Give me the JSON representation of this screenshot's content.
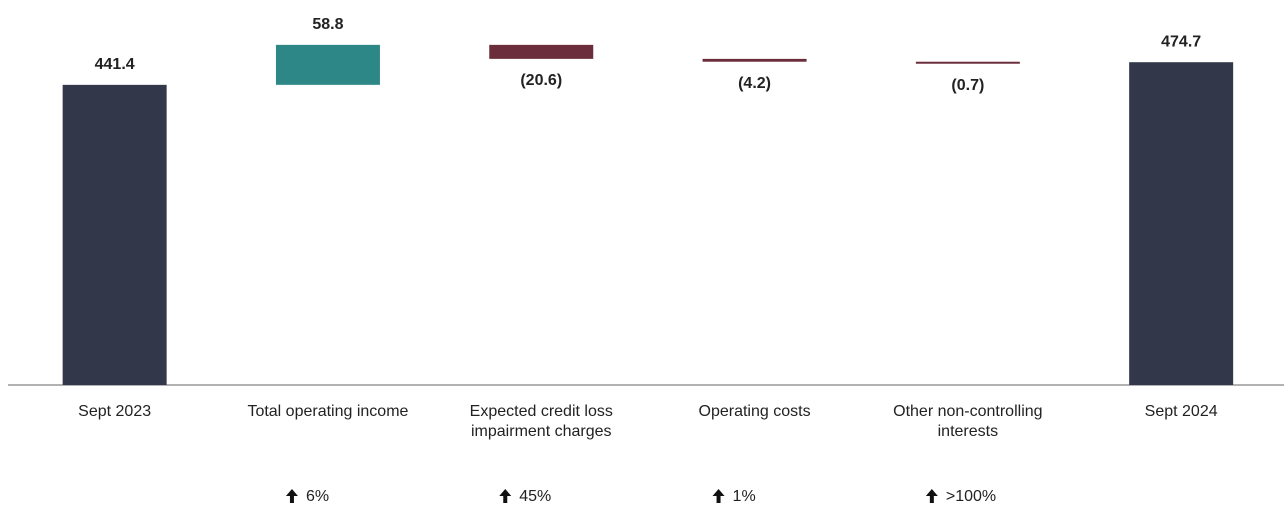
{
  "chart_data": {
    "type": "waterfall",
    "categories": [
      "Sept 2023",
      "Total operating income",
      "Expected credit loss impairment charges",
      "Operating costs",
      "Other non-controlling interests",
      "Sept 2024"
    ],
    "measures": [
      "total",
      "relative",
      "relative",
      "relative",
      "relative",
      "total"
    ],
    "values": [
      441.4,
      58.8,
      -20.6,
      -4.2,
      -0.7,
      474.7
    ],
    "value_labels": [
      "441.4",
      "58.8",
      "(20.6)",
      "(4.2)",
      "(0.7)",
      "474.7"
    ],
    "colors": [
      "#323849",
      "#2e8787",
      "#6b2d3c",
      "#6b2d3c",
      "#6b2d3c",
      "#323849"
    ],
    "changes": [
      null,
      "6%",
      "45%",
      "1%",
      ">100%",
      null
    ],
    "ylim": [
      0,
      500
    ]
  }
}
